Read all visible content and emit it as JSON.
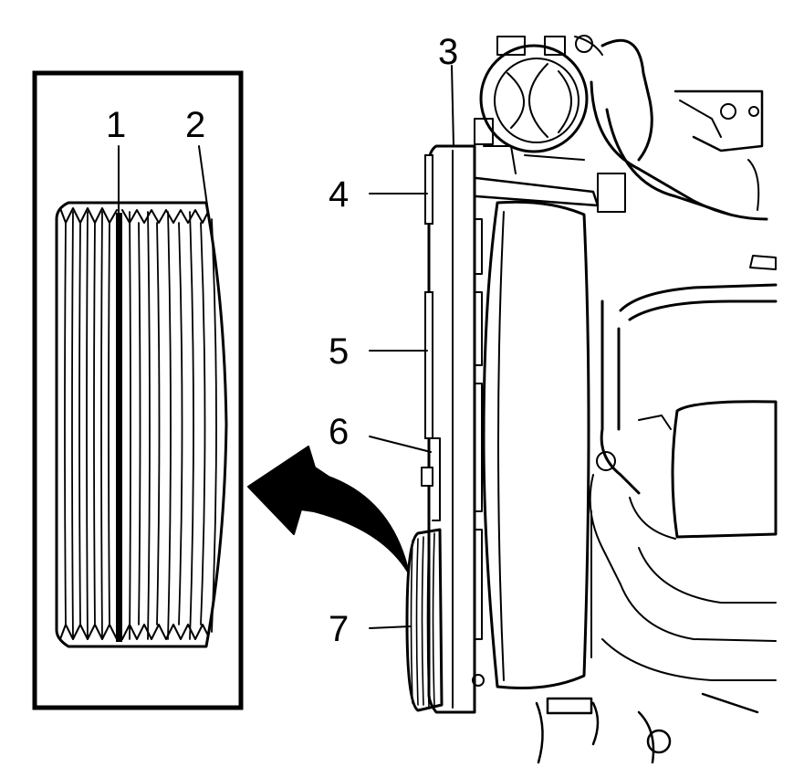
{
  "callouts": {
    "c1": "1",
    "c2": "2",
    "c3": "3",
    "c4": "4",
    "c5": "5",
    "c6": "6",
    "c7": "7"
  }
}
